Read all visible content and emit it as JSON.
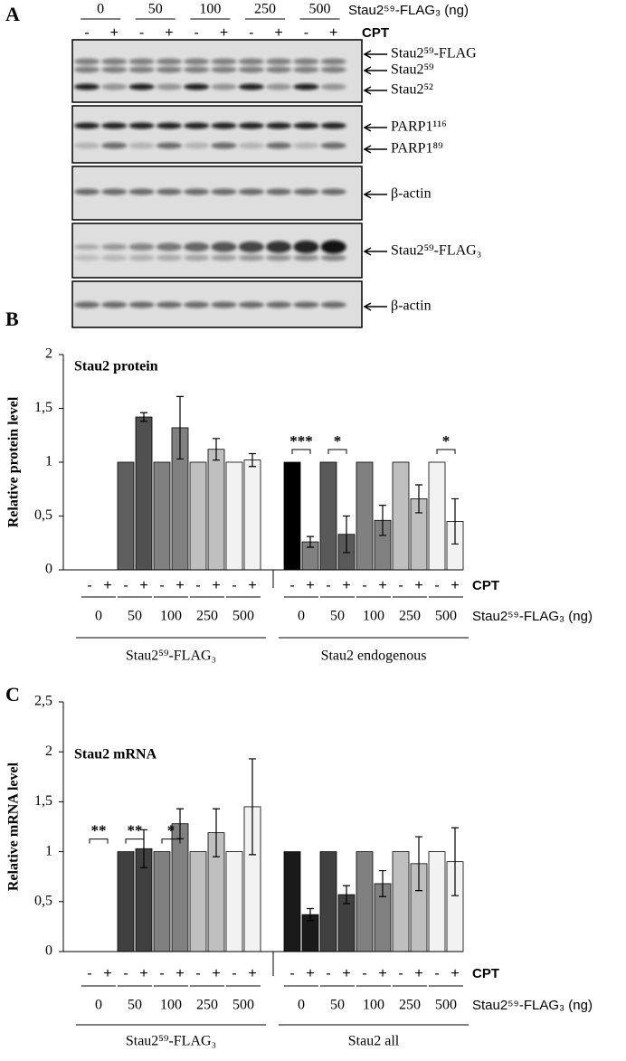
{
  "blot": {
    "panel_label": "A",
    "dose_label": "Stau2⁵⁹-FLAG₃ (ng)",
    "doses": [
      "0",
      "50",
      "100",
      "250",
      "500"
    ],
    "cpt_label": "CPT",
    "cpt": [
      "-",
      "+",
      "-",
      "+",
      "-",
      "+",
      "-",
      "+",
      "-",
      "+"
    ],
    "strips": [
      {
        "labels": [
          "Stau2⁵⁹-FLAG",
          "Stau2⁵⁹",
          "Stau2⁵²"
        ]
      },
      {
        "labels": [
          "PARP1¹¹⁶",
          "PARP1⁸⁹"
        ]
      },
      {
        "labels": [
          "β-actin"
        ]
      },
      {
        "labels": [
          "Stau2⁵⁹-FLAG₃"
        ]
      },
      {
        "labels": [
          "β-actin"
        ]
      }
    ]
  },
  "chart_data": [
    {
      "type": "bar",
      "panel_label": "B",
      "annotation": "Stau2 protein",
      "y_label": "Relative protein level",
      "cpt_label": "CPT",
      "dose_axis_label": "Stau2⁵⁹-FLAG₃ (ng)",
      "categories": [
        "-",
        "+",
        "-",
        "+",
        "-",
        "+",
        "-",
        "+",
        "-",
        "+",
        "-",
        "+",
        "-",
        "+",
        "-",
        "+",
        "-",
        "+",
        "-",
        "+"
      ],
      "dose_labels": [
        "0",
        "50",
        "100",
        "250",
        "500",
        "0",
        "50",
        "100",
        "250",
        "500"
      ],
      "group_labels": [
        "Stau2⁵⁹-FLAG₃",
        "Stau2 endogenous"
      ],
      "values": [
        null,
        null,
        1,
        1.42,
        1,
        1.32,
        1,
        1.12,
        1,
        1.02,
        1,
        0.26,
        1,
        0.33,
        1,
        0.46,
        1,
        0.66,
        1,
        0.45
      ],
      "errors": [
        null,
        null,
        null,
        0.04,
        null,
        0.29,
        null,
        0.1,
        null,
        0.06,
        null,
        0.05,
        null,
        0.17,
        null,
        0.14,
        null,
        0.13,
        null,
        0.21
      ],
      "colors": [
        null,
        null,
        "#5f5f5f",
        "#505050",
        "#808080",
        "#808080",
        "#bfbfbf",
        "#bfbfbf",
        "#f2f2f2",
        "#f2f2f2",
        "#000000",
        "#808080",
        "#595959",
        "#595959",
        "#808080",
        "#808080",
        "#bfbfbf",
        "#bfbfbf",
        "#f2f2f2",
        "#f2f2f2"
      ],
      "significance": [
        null,
        null,
        null,
        null,
        null,
        "***",
        "*",
        null,
        null,
        "*"
      ],
      "ylim": [
        0,
        2
      ],
      "yticks": [
        0,
        {
          "value": 0.5,
          "label": "0,5"
        },
        1,
        {
          "value": 1.5,
          "label": "1,5"
        },
        2
      ]
    },
    {
      "type": "bar",
      "panel_label": "C",
      "annotation": "Stau2 mRNA",
      "y_label": "Relative mRNA level",
      "cpt_label": "CPT",
      "dose_axis_label": "Stau2⁵⁹-FLAG₃ (ng)",
      "categories": [
        "-",
        "+",
        "-",
        "+",
        "-",
        "+",
        "-",
        "+",
        "-",
        "+",
        "-",
        "+",
        "-",
        "+",
        "-",
        "+",
        "-",
        "+",
        "-",
        "+"
      ],
      "dose_labels": [
        "0",
        "50",
        "100",
        "250",
        "500",
        "0",
        "50",
        "100",
        "250",
        "500"
      ],
      "group_labels": [
        "Stau2⁵⁹-FLAG₃",
        "Stau2 all"
      ],
      "values": [
        null,
        null,
        1,
        1.03,
        1,
        1.28,
        1,
        1.19,
        1,
        1.45,
        1,
        0.37,
        1,
        0.57,
        1,
        0.68,
        1,
        0.88,
        1,
        0.9
      ],
      "errors": [
        null,
        null,
        null,
        0.19,
        null,
        0.15,
        null,
        0.24,
        null,
        0.48,
        null,
        0.06,
        null,
        0.09,
        null,
        0.13,
        null,
        0.27,
        null,
        0.34
      ],
      "colors": [
        null,
        null,
        "#404040",
        "#404040",
        "#808080",
        "#808080",
        "#bfbfbf",
        "#bfbfbf",
        "#f2f2f2",
        "#f2f2f2",
        "#1a1a1a",
        "#1a1a1a",
        "#404040",
        "#404040",
        "#808080",
        "#808080",
        "#bfbfbf",
        "#bfbfbf",
        "#f2f2f2",
        "#f2f2f2"
      ],
      "significance": [
        "**",
        "**",
        "*",
        null,
        null,
        null,
        null,
        null,
        null,
        null
      ],
      "ylim": [
        0,
        2.5
      ],
      "yticks": [
        0,
        {
          "value": 0.5,
          "label": "0,5"
        },
        1,
        {
          "value": 1.5,
          "label": "1,5"
        },
        2,
        {
          "value": 2.5,
          "label": "2,5"
        }
      ]
    }
  ]
}
